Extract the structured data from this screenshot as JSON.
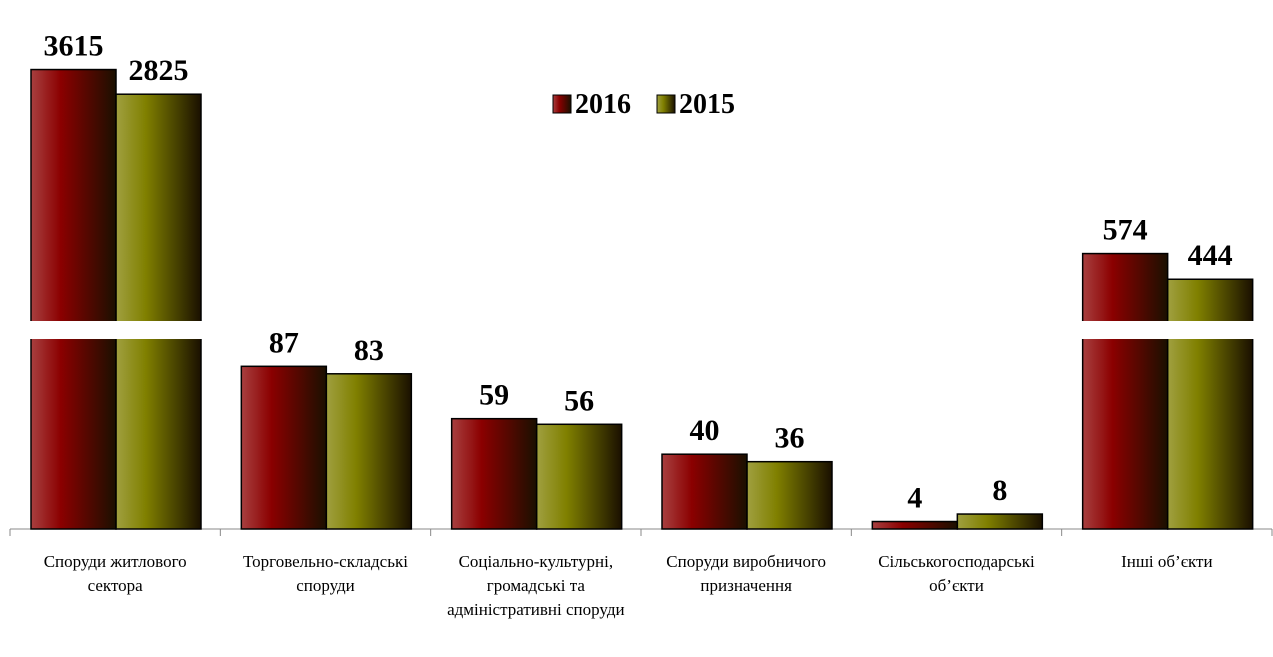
{
  "chart_data": {
    "type": "bar",
    "categories": [
      "Споруди житлового сектора",
      "Торговельно-складські споруди",
      "Соціально-культурні, громадські та адміністративні споруди",
      "Споруди виробничого призначення",
      "Сільськогосподарські об’єкти",
      "Інші об’єкти"
    ],
    "series": [
      {
        "name": "2016",
        "color": "#8b0000",
        "values": [
          3615,
          87,
          59,
          40,
          4,
          574
        ]
      },
      {
        "name": "2015",
        "color": "#808000",
        "values": [
          2825,
          83,
          56,
          36,
          8,
          444
        ]
      }
    ]
  }
}
